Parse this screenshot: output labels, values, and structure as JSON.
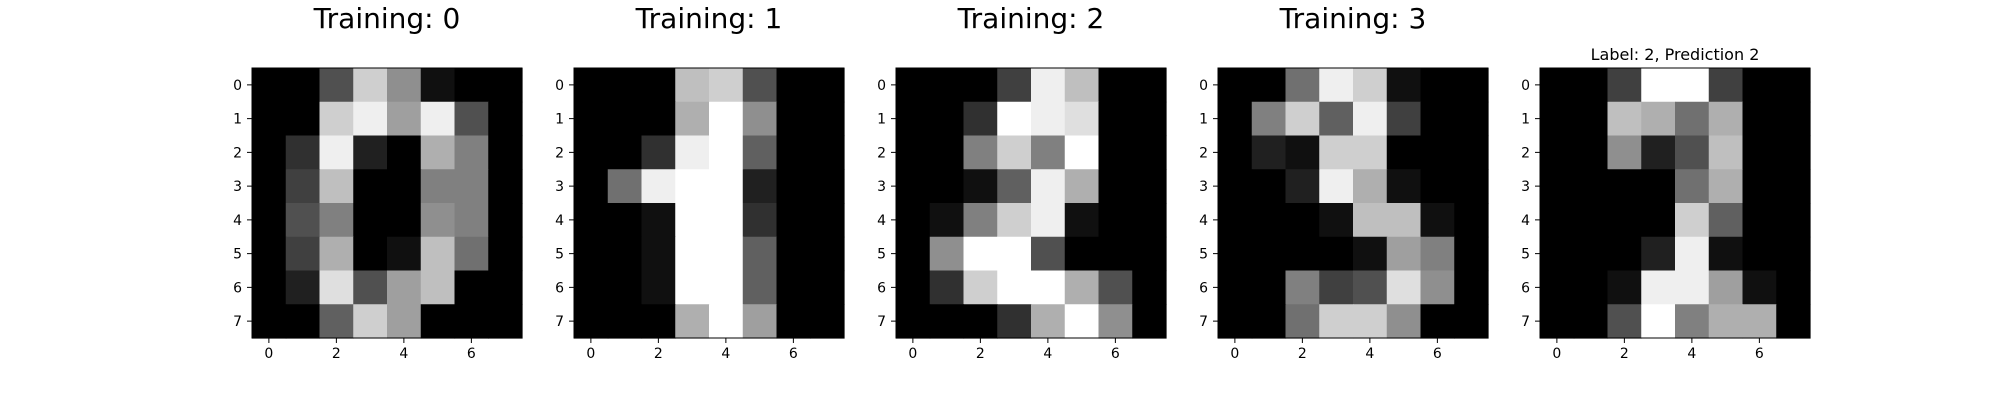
{
  "chart_data": [
    {
      "type": "heatmap",
      "title": "Training: 0",
      "colormap": "gray",
      "value_range": [
        0,
        16
      ],
      "xticks": [
        "0",
        "2",
        "4",
        "6"
      ],
      "yticks": [
        "0",
        "1",
        "2",
        "3",
        "4",
        "5",
        "6",
        "7"
      ],
      "grid": false,
      "values": [
        [
          0,
          0,
          5,
          13,
          9,
          1,
          0,
          0
        ],
        [
          0,
          0,
          13,
          15,
          10,
          15,
          5,
          0
        ],
        [
          0,
          3,
          15,
          2,
          0,
          11,
          8,
          0
        ],
        [
          0,
          4,
          12,
          0,
          0,
          8,
          8,
          0
        ],
        [
          0,
          5,
          8,
          0,
          0,
          9,
          8,
          0
        ],
        [
          0,
          4,
          11,
          0,
          1,
          12,
          7,
          0
        ],
        [
          0,
          2,
          14,
          5,
          10,
          12,
          0,
          0
        ],
        [
          0,
          0,
          6,
          13,
          10,
          0,
          0,
          0
        ]
      ]
    },
    {
      "type": "heatmap",
      "title": "Training: 1",
      "colormap": "gray",
      "value_range": [
        0,
        16
      ],
      "xticks": [
        "0",
        "2",
        "4",
        "6"
      ],
      "yticks": [
        "0",
        "1",
        "2",
        "3",
        "4",
        "5",
        "6",
        "7"
      ],
      "grid": false,
      "values": [
        [
          0,
          0,
          0,
          12,
          13,
          5,
          0,
          0
        ],
        [
          0,
          0,
          0,
          11,
          16,
          9,
          0,
          0
        ],
        [
          0,
          0,
          3,
          15,
          16,
          6,
          0,
          0
        ],
        [
          0,
          7,
          15,
          16,
          16,
          2,
          0,
          0
        ],
        [
          0,
          0,
          1,
          16,
          16,
          3,
          0,
          0
        ],
        [
          0,
          0,
          1,
          16,
          16,
          6,
          0,
          0
        ],
        [
          0,
          0,
          1,
          16,
          16,
          6,
          0,
          0
        ],
        [
          0,
          0,
          0,
          11,
          16,
          10,
          0,
          0
        ]
      ]
    },
    {
      "type": "heatmap",
      "title": "Training: 2",
      "colormap": "gray",
      "value_range": [
        0,
        16
      ],
      "xticks": [
        "0",
        "2",
        "4",
        "6"
      ],
      "yticks": [
        "0",
        "1",
        "2",
        "3",
        "4",
        "5",
        "6",
        "7"
      ],
      "grid": false,
      "values": [
        [
          0,
          0,
          0,
          4,
          15,
          12,
          0,
          0
        ],
        [
          0,
          0,
          3,
          16,
          15,
          14,
          0,
          0
        ],
        [
          0,
          0,
          8,
          13,
          8,
          16,
          0,
          0
        ],
        [
          0,
          0,
          1,
          6,
          15,
          11,
          0,
          0
        ],
        [
          0,
          1,
          8,
          13,
          15,
          1,
          0,
          0
        ],
        [
          0,
          9,
          16,
          16,
          5,
          0,
          0,
          0
        ],
        [
          0,
          3,
          13,
          16,
          16,
          11,
          5,
          0
        ],
        [
          0,
          0,
          0,
          3,
          11,
          16,
          9,
          0
        ]
      ]
    },
    {
      "type": "heatmap",
      "title": "Training: 3",
      "colormap": "gray",
      "value_range": [
        0,
        16
      ],
      "xticks": [
        "0",
        "2",
        "4",
        "6"
      ],
      "yticks": [
        "0",
        "1",
        "2",
        "3",
        "4",
        "5",
        "6",
        "7"
      ],
      "grid": false,
      "values": [
        [
          0,
          0,
          7,
          15,
          13,
          1,
          0,
          0
        ],
        [
          0,
          8,
          13,
          6,
          15,
          4,
          0,
          0
        ],
        [
          0,
          2,
          1,
          13,
          13,
          0,
          0,
          0
        ],
        [
          0,
          0,
          2,
          15,
          11,
          1,
          0,
          0
        ],
        [
          0,
          0,
          0,
          1,
          12,
          12,
          1,
          0
        ],
        [
          0,
          0,
          0,
          0,
          1,
          10,
          8,
          0
        ],
        [
          0,
          0,
          8,
          4,
          5,
          14,
          9,
          0
        ],
        [
          0,
          0,
          7,
          13,
          13,
          9,
          0,
          0
        ]
      ]
    },
    {
      "type": "heatmap",
      "title": "Label: 2, Prediction 2",
      "colormap": "gray",
      "value_range": [
        0,
        16
      ],
      "xticks": [
        "0",
        "2",
        "4",
        "6"
      ],
      "yticks": [
        "0",
        "1",
        "2",
        "3",
        "4",
        "5",
        "6",
        "7"
      ],
      "grid": false,
      "values": [
        [
          0,
          0,
          4,
          16,
          16,
          4,
          0,
          0
        ],
        [
          0,
          0,
          12,
          11,
          7,
          11,
          0,
          0
        ],
        [
          0,
          0,
          9,
          2,
          5,
          12,
          0,
          0
        ],
        [
          0,
          0,
          0,
          0,
          7,
          11,
          0,
          0
        ],
        [
          0,
          0,
          0,
          0,
          13,
          6,
          0,
          0
        ],
        [
          0,
          0,
          0,
          2,
          15,
          1,
          0,
          0
        ],
        [
          0,
          0,
          1,
          15,
          15,
          10,
          1,
          0
        ],
        [
          0,
          0,
          5,
          16,
          8,
          11,
          11,
          0
        ]
      ]
    }
  ]
}
